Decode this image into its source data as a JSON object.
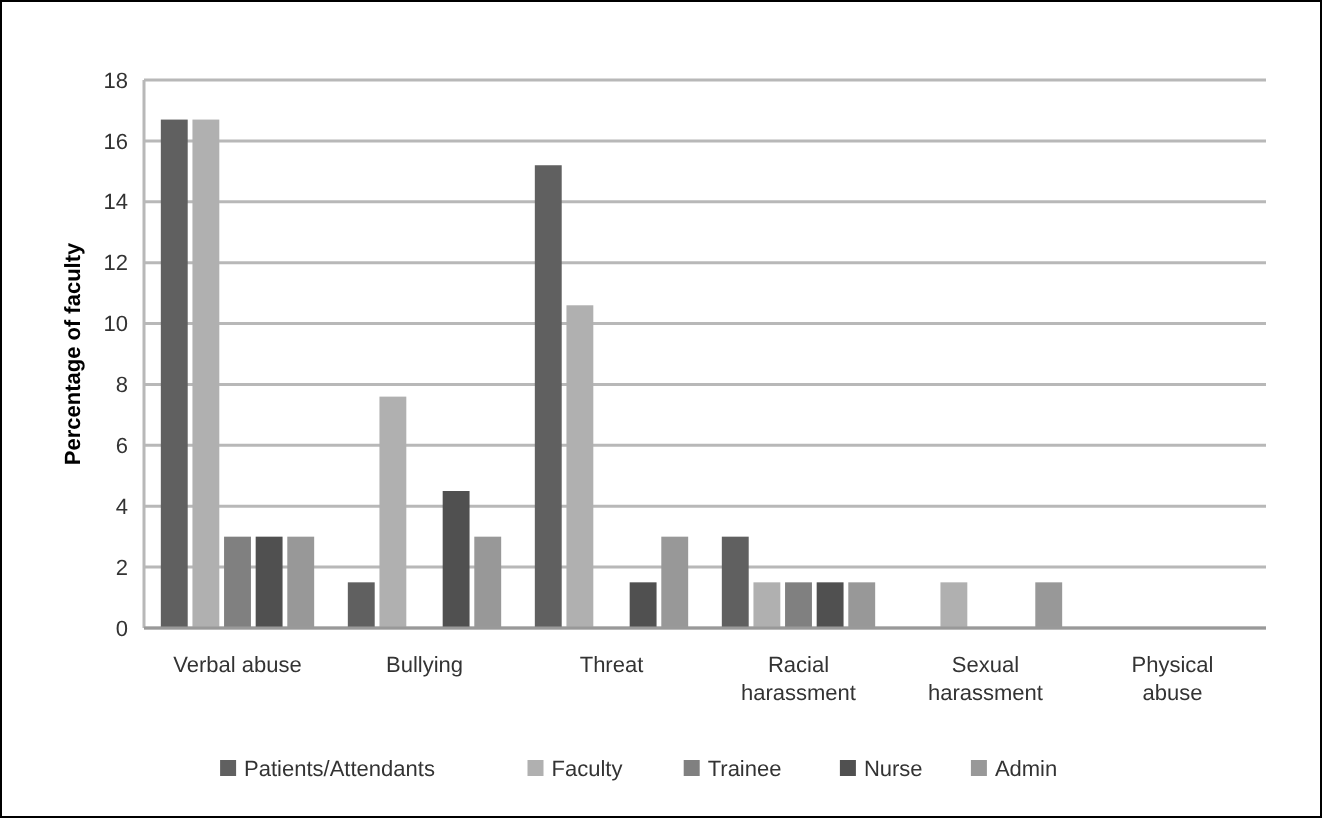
{
  "chart_data": {
    "type": "bar",
    "ylabel": "Percentage of faculty",
    "categories": [
      "Verbal abuse",
      "Bullying",
      "Threat",
      "Racial harassment",
      "Sexual harassment",
      "Physical abuse"
    ],
    "series": [
      {
        "name": "Patients/Attendants",
        "color": "#606060",
        "values": [
          16.7,
          1.5,
          15.2,
          3.0,
          0,
          0
        ]
      },
      {
        "name": "Faculty",
        "color": "#b0b0b0",
        "values": [
          16.7,
          7.6,
          10.6,
          1.5,
          1.5,
          0
        ]
      },
      {
        "name": "Trainee",
        "color": "#808080",
        "values": [
          3.0,
          0,
          0,
          1.5,
          0,
          0
        ]
      },
      {
        "name": "Nurse",
        "color": "#505050",
        "values": [
          3.0,
          4.5,
          1.5,
          1.5,
          0,
          0
        ]
      },
      {
        "name": "Admin",
        "color": "#989898",
        "values": [
          3.0,
          3.0,
          3.0,
          1.5,
          1.5,
          0
        ]
      }
    ],
    "ylim": [
      0,
      18
    ],
    "yticks": [
      0,
      2,
      4,
      6,
      8,
      10,
      12,
      14,
      16,
      18
    ],
    "grid": "y",
    "legend": "bottom"
  }
}
